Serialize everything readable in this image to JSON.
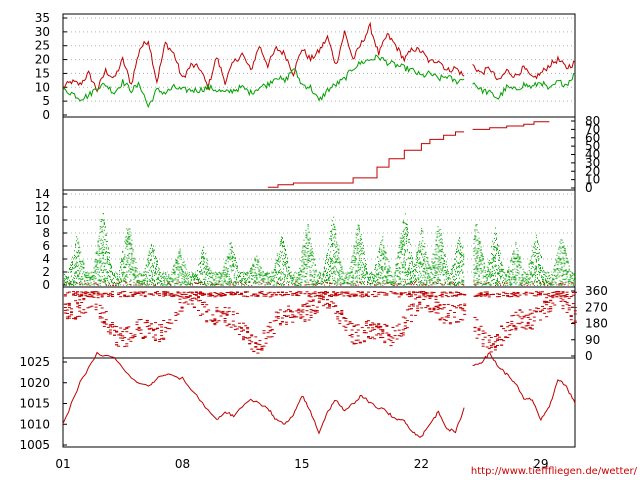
{
  "credit": "http://www.tiefffliegen.de/wetter/",
  "colors": {
    "red": "#c00000",
    "green": "#00a000",
    "grid": "#b0b0b0"
  },
  "chart_data": [
    {
      "type": "line",
      "ylim": [
        0,
        35
      ],
      "ticks": [
        "0",
        "5",
        "10",
        "15",
        "20",
        "25",
        "30",
        "35"
      ],
      "xlim": [
        1,
        31
      ],
      "series": [
        {
          "color": "red",
          "x": [
            1,
            1.5,
            2,
            2.5,
            3,
            3.5,
            4,
            4.5,
            5,
            5.5,
            6,
            6.5,
            7,
            7.5,
            8,
            8.5,
            9,
            9.5,
            10,
            10.5,
            11,
            11.5,
            12,
            12.5,
            13,
            13.5,
            14,
            14.5,
            15,
            15.5,
            16,
            16.5,
            17,
            17.5,
            18,
            18.5,
            19,
            19.5,
            20,
            20.5,
            21,
            21.5,
            22,
            22.5,
            23,
            23.5,
            24,
            24.5,
            null,
            25,
            25.5,
            26,
            26.5,
            27,
            27.5,
            28,
            28.5,
            29,
            29.5,
            30,
            30.5,
            31
          ],
          "y": [
            10,
            12,
            11,
            15,
            9,
            16,
            13,
            20,
            11,
            24,
            27,
            12,
            26,
            22,
            13,
            18,
            17,
            10,
            21,
            12,
            19,
            22,
            16,
            25,
            18,
            24,
            22,
            15,
            24,
            20,
            23,
            28,
            18,
            30,
            20,
            26,
            32,
            22,
            29,
            25,
            20,
            24,
            23,
            19,
            20,
            16,
            17,
            14,
            null,
            18,
            15,
            17,
            12,
            16,
            14,
            17,
            13,
            15,
            18,
            20,
            17,
            19
          ]
        },
        {
          "color": "green",
          "x": [
            1,
            1.5,
            2,
            2.5,
            3,
            3.5,
            4,
            4.5,
            5,
            5.5,
            6,
            6.5,
            7,
            7.5,
            8,
            8.5,
            9,
            9.5,
            10,
            10.5,
            11,
            11.5,
            12,
            12.5,
            13,
            13.5,
            14,
            14.5,
            15,
            15.5,
            16,
            16.5,
            17,
            17.5,
            18,
            18.5,
            19,
            19.5,
            20,
            20.5,
            21,
            21.5,
            22,
            22.5,
            23,
            23.5,
            24,
            24.5,
            null,
            25,
            25.5,
            26,
            26.5,
            27,
            27.5,
            28,
            28.5,
            29,
            29.5,
            30,
            30.5,
            31
          ],
          "y": [
            9,
            8,
            6,
            7,
            10,
            11,
            8,
            12,
            9,
            11,
            3,
            9,
            8,
            10,
            9,
            9,
            9,
            10,
            9,
            8,
            9,
            10,
            8,
            10,
            11,
            14,
            12,
            17,
            11,
            10,
            5,
            9,
            11,
            13,
            17,
            19,
            20,
            21,
            19,
            18,
            17,
            16,
            14,
            15,
            13,
            14,
            12,
            13,
            null,
            12,
            9,
            8,
            6,
            10,
            9,
            11,
            10,
            12,
            9,
            12,
            11,
            15
          ]
        }
      ]
    },
    {
      "type": "line",
      "ylim": [
        0,
        80
      ],
      "ticks": [
        "0",
        "10",
        "20",
        "30",
        "40",
        "50",
        "60",
        "70",
        "80"
      ],
      "xlim": [
        1,
        31
      ],
      "series": [
        {
          "color": "red",
          "x": [
            13,
            13.6,
            13.6,
            14.5,
            14.5,
            18,
            18,
            19.4,
            19.4,
            20.1,
            20.1,
            21,
            21,
            22,
            22,
            22.5,
            22.5,
            23.3,
            23.3,
            24,
            24,
            24.5,
            null,
            25,
            25,
            26,
            26,
            27,
            27,
            28,
            28,
            28.6,
            28.6,
            29.5
          ],
          "y": [
            1,
            1,
            4,
            4,
            6,
            6,
            12,
            12,
            25,
            25,
            35,
            35,
            45,
            45,
            53,
            53,
            58,
            58,
            63,
            63,
            67,
            67,
            null,
            70,
            70,
            70,
            72,
            72,
            74,
            74,
            76,
            76,
            79,
            79
          ]
        }
      ]
    },
    {
      "type": "scatter",
      "ylim": [
        0,
        14
      ],
      "ticks": [
        "0",
        "2",
        "4",
        "6",
        "8",
        "10",
        "12",
        "14"
      ],
      "xlim": [
        1,
        31
      ],
      "peaks": {
        "x": [
          1.8,
          3.3,
          4.8,
          6.2,
          7.8,
          9.2,
          10.8,
          12.3,
          13.8,
          15.3,
          16.8,
          18.3,
          19.7,
          21,
          22,
          23,
          24.2,
          25.2,
          26.3,
          27.5,
          28.7,
          30.2
        ],
        "y": [
          8,
          12,
          10,
          7,
          6,
          6,
          7,
          5,
          8,
          10,
          11,
          10,
          8,
          12,
          9,
          10,
          8,
          10,
          9,
          7,
          8,
          8
        ]
      },
      "gaps": [
        [
          24.5,
          25
        ]
      ],
      "series": [
        {
          "color": "green"
        },
        {
          "color": "red"
        }
      ]
    },
    {
      "type": "scatter",
      "ylim": [
        0,
        360
      ],
      "ticks": [
        "0",
        "90",
        "180",
        "270",
        "360"
      ],
      "xlim": [
        1,
        31
      ],
      "series": [
        {
          "color": "red"
        }
      ]
    },
    {
      "type": "line",
      "ylim": [
        1005,
        1025
      ],
      "ticks": [
        "1005",
        "1010",
        "1015",
        "1020",
        "1025"
      ],
      "xlabels": [
        "01",
        "08",
        "15",
        "22",
        "29"
      ],
      "xlim": [
        1,
        31
      ],
      "series": [
        {
          "color": "red",
          "x": [
            1,
            2,
            3,
            4,
            5,
            6,
            6.5,
            7,
            8,
            9,
            10,
            10.5,
            11,
            12,
            13,
            13.5,
            14,
            14.5,
            15,
            15.5,
            16,
            16.5,
            17,
            17.5,
            18,
            18.5,
            19,
            20,
            20.5,
            21,
            21.5,
            22,
            22.5,
            23,
            23.5,
            24,
            24.5,
            null,
            25,
            25.5,
            26,
            26.5,
            27,
            27.5,
            28,
            28.5,
            29,
            29.5,
            30,
            30.5,
            31
          ],
          "y": [
            1010,
            1020,
            1027,
            1026,
            1021,
            1019,
            1021,
            1022,
            1021,
            1016,
            1011,
            1013,
            1012,
            1016,
            1014,
            1011,
            1010,
            1012,
            1017,
            1013,
            1008,
            1013,
            1016,
            1013,
            1015,
            1017,
            1015,
            1013,
            1011,
            1011,
            1008,
            1007,
            1010,
            1013,
            1009,
            1008,
            1014,
            null,
            1024,
            1025,
            1027,
            1024,
            1022,
            1020,
            1016,
            1016,
            1011,
            1014,
            1021,
            1019,
            1015
          ]
        }
      ]
    }
  ]
}
